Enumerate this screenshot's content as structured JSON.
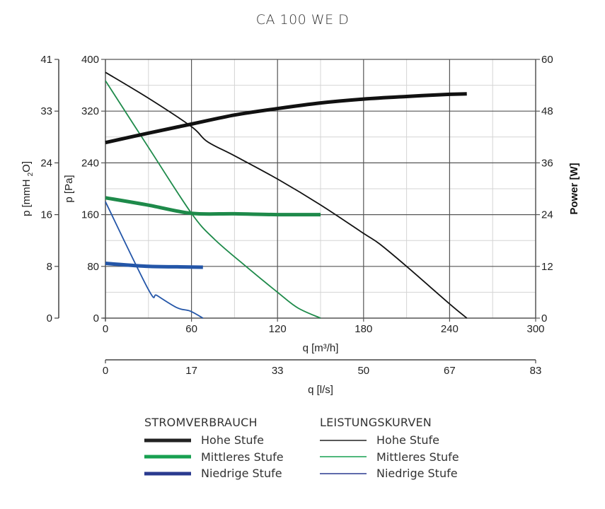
{
  "chart_data": {
    "type": "line",
    "title": "CA 100 WE D",
    "xlabel": "q [m³/h]",
    "xlim": [
      0,
      300
    ],
    "xticks": [
      "0",
      "60",
      "120",
      "180",
      "240",
      "300"
    ],
    "xlabel2": "q [l/s]",
    "xticks2": [
      "0",
      "17",
      "33",
      "50",
      "67",
      "83"
    ],
    "ylabel": "p [Pa]",
    "ylim": [
      0,
      400
    ],
    "yticks": [
      "0",
      "80",
      "160",
      "240",
      "320",
      "400"
    ],
    "ylabel_left_outer": "p [mmH2O]",
    "yticks_left_outer": [
      "0",
      "8",
      "16",
      "24",
      "33",
      "41"
    ],
    "ylabel_right": "Power [W]",
    "ylim_right": [
      0,
      60
    ],
    "yticks_right": [
      "0",
      "12",
      "24",
      "36",
      "48",
      "60"
    ],
    "grid": true,
    "legend_position": "bottom",
    "legend_groups": [
      {
        "title": "STROMVERBRAUCH",
        "entries": [
          "Hohe Stufe",
          "Mittleres Stufe",
          "Niedrige Stufe"
        ]
      },
      {
        "title": "LEISTUNGSKURVEN",
        "entries": [
          "Hohe Stufe",
          "Mittleres Stufe",
          "Niedrige Stufe"
        ]
      }
    ],
    "series": [
      {
        "name": "Hohe Stufe",
        "group": "LEISTUNGSKURVEN",
        "axis": "left",
        "unit": "Pa",
        "color": "#111111",
        "x": [
          0,
          30,
          60,
          71,
          90,
          120,
          150,
          180,
          191,
          210,
          240,
          252
        ],
        "y": [
          380,
          340,
          296,
          273,
          251,
          215,
          175,
          131,
          115,
          80,
          22,
          0
        ]
      },
      {
        "name": "Mittleres Stufe",
        "group": "LEISTUNGSKURVEN",
        "axis": "left",
        "unit": "Pa",
        "color": "#1e8a4a",
        "x": [
          0,
          30,
          60,
          76,
          98,
          120,
          134,
          150
        ],
        "y": [
          367,
          264,
          162,
          122,
          80,
          40,
          16,
          0
        ]
      },
      {
        "name": "Niedrige Stufe",
        "group": "LEISTUNGSKURVEN",
        "axis": "left",
        "unit": "Pa",
        "color": "#2456a8",
        "x": [
          0,
          30,
          36,
          50,
          59,
          68
        ],
        "y": [
          180,
          44,
          35,
          16,
          11,
          0
        ]
      },
      {
        "name": "Hohe Stufe",
        "group": "STROMVERBRAUCH",
        "axis": "right",
        "unit": "W",
        "color": "#111111",
        "x": [
          0,
          30,
          60,
          90,
          120,
          150,
          180,
          210,
          240,
          252
        ],
        "y": [
          40.7,
          42.9,
          45.0,
          47.1,
          48.6,
          49.9,
          50.8,
          51.4,
          51.9,
          52.0
        ]
      },
      {
        "name": "Mittleres Stufe",
        "group": "STROMVERBRAUCH",
        "axis": "right",
        "unit": "W",
        "color": "#1e8a4a",
        "x": [
          0,
          30,
          60,
          90,
          120,
          150
        ],
        "y": [
          27.9,
          26.2,
          24.3,
          24.2,
          24.0,
          24.0
        ]
      },
      {
        "name": "Niedrige Stufe",
        "group": "STROMVERBRAUCH",
        "axis": "right",
        "unit": "W",
        "color": "#2456a8",
        "x": [
          0,
          30,
          50,
          68
        ],
        "y": [
          12.7,
          12.0,
          11.9,
          11.8
        ]
      }
    ]
  },
  "legend_colors": {
    "hohe": "#222222",
    "mittleres": "#17a050",
    "niedrige": "#2a3a8f"
  }
}
